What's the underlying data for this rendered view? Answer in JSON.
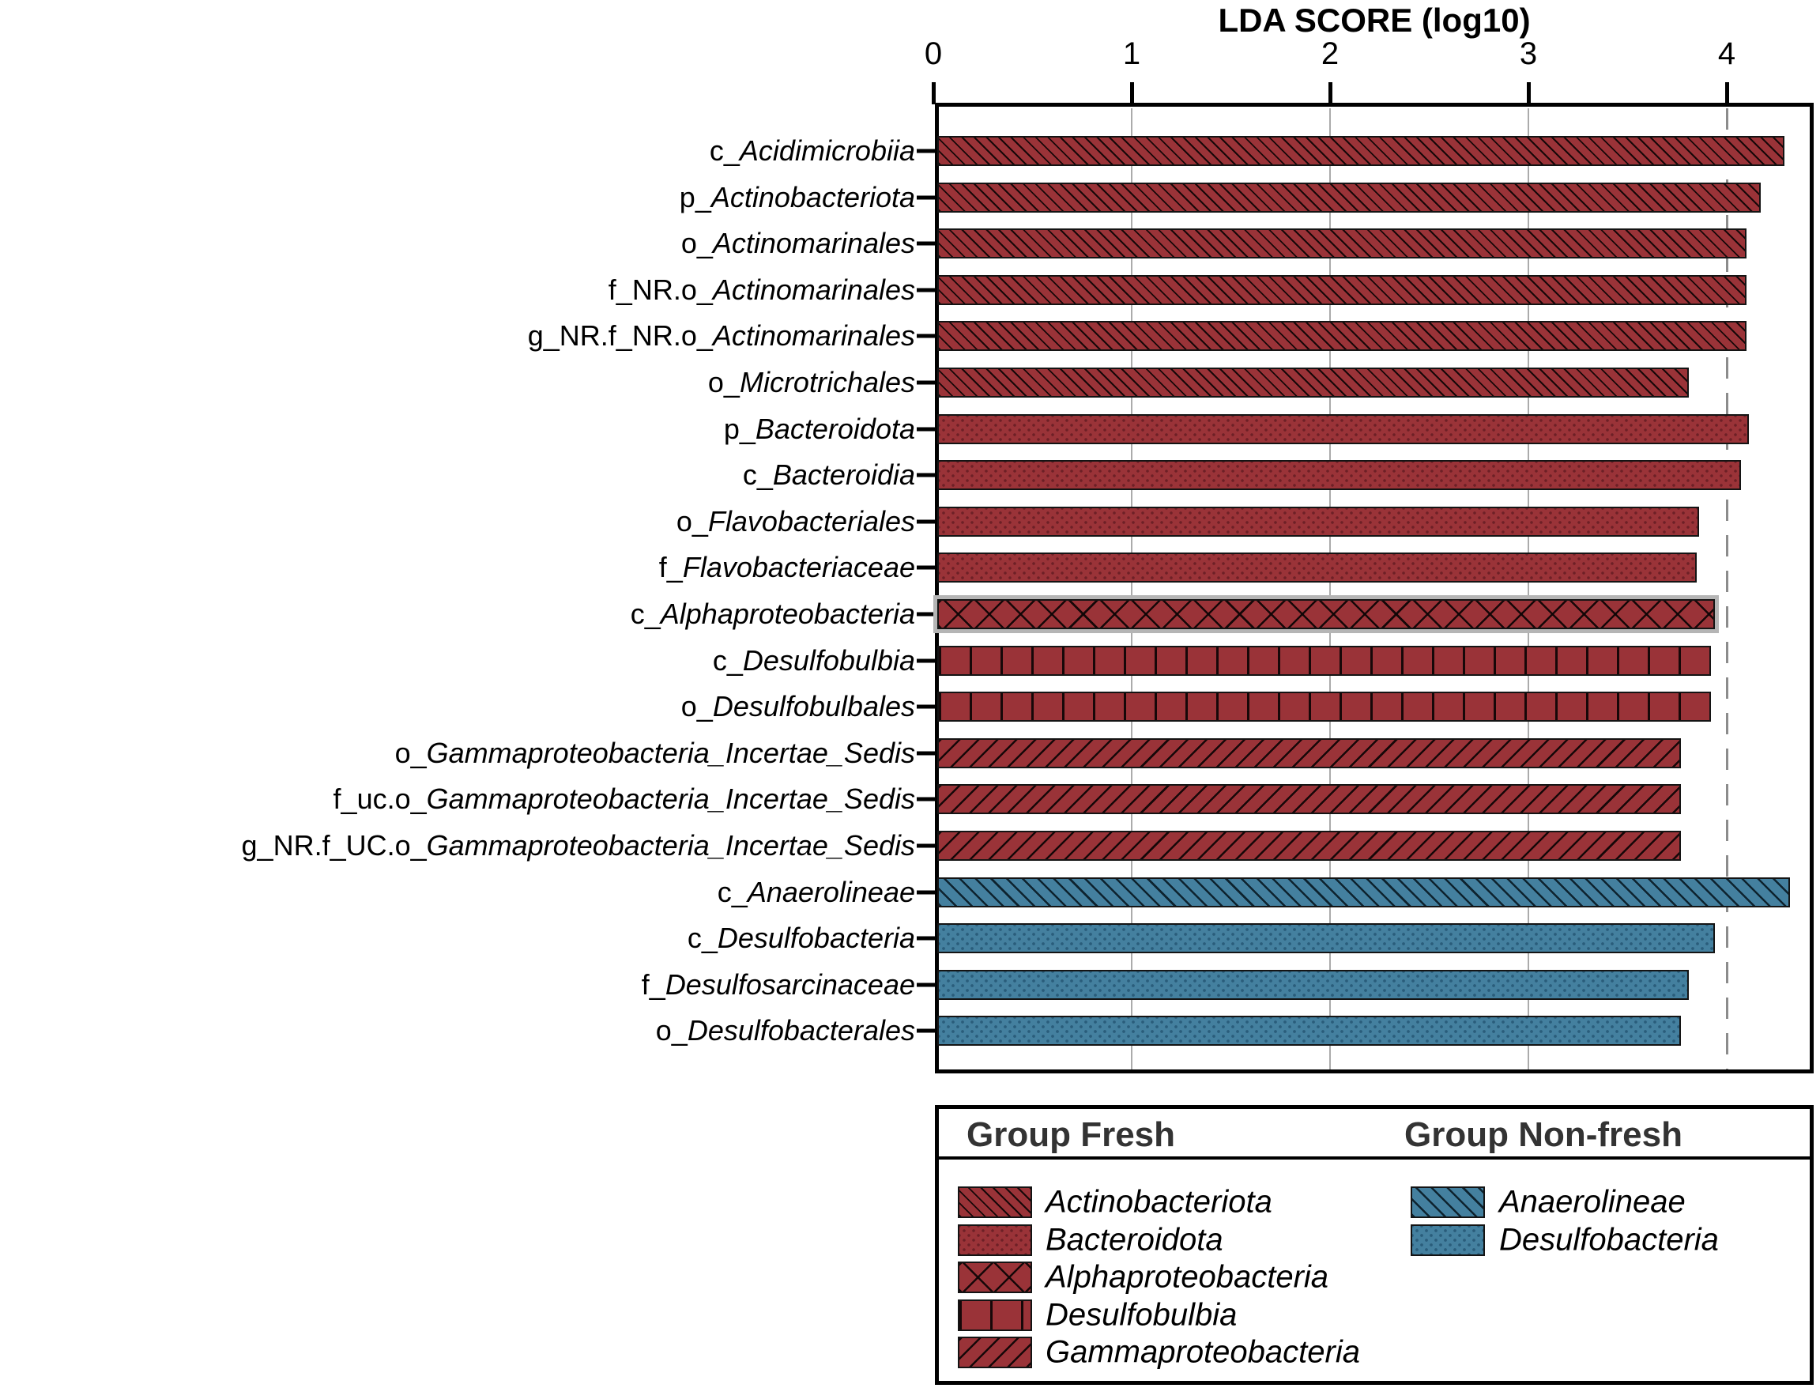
{
  "title": "LDA SCORE (log10)",
  "x_axis": {
    "tick_labels": [
      "0",
      "1",
      "2",
      "3",
      "4"
    ],
    "tick_values": [
      0,
      1,
      2,
      3,
      4
    ],
    "max": 4.44,
    "solid_gridlines_at": [
      1,
      2,
      3
    ],
    "dashed_reference_line_at": 4
  },
  "chart_data": {
    "type": "bar",
    "orientation": "horizontal",
    "title": "LDA SCORE (log10)",
    "xlabel": "LDA SCORE (log10)",
    "ylabel": "",
    "xlim": [
      0,
      4.44
    ],
    "grid": "vertical-gridlines-at-1-2-3-plus-dashed-at-4",
    "legend_position": "bottom-box",
    "bars": [
      {
        "label_prefix": "c_",
        "label_taxon": "Acidimicrobiia",
        "value": 4.29,
        "group": "Fresh",
        "legend_taxon": "Actinobacteriota",
        "pattern": "diagonal-forward",
        "color": "#9a3338"
      },
      {
        "label_prefix": "p_",
        "label_taxon": "Actinobacteriota",
        "value": 4.17,
        "group": "Fresh",
        "legend_taxon": "Actinobacteriota",
        "pattern": "diagonal-forward",
        "color": "#9a3338"
      },
      {
        "label_prefix": "o_",
        "label_taxon": "Actinomarinales",
        "value": 4.1,
        "group": "Fresh",
        "legend_taxon": "Actinobacteriota",
        "pattern": "diagonal-forward",
        "color": "#9a3338"
      },
      {
        "label_prefix": "f_NR.o_",
        "label_taxon": "Actinomarinales",
        "value": 4.1,
        "group": "Fresh",
        "legend_taxon": "Actinobacteriota",
        "pattern": "diagonal-forward",
        "color": "#9a3338"
      },
      {
        "label_prefix": "g_NR.f_NR.o_",
        "label_taxon": "Actinomarinales",
        "value": 4.1,
        "group": "Fresh",
        "legend_taxon": "Actinobacteriota",
        "pattern": "diagonal-forward",
        "color": "#9a3338"
      },
      {
        "label_prefix": "o_",
        "label_taxon": "Microtrichales",
        "value": 3.81,
        "group": "Fresh",
        "legend_taxon": "Actinobacteriota",
        "pattern": "diagonal-forward",
        "color": "#9a3338"
      },
      {
        "label_prefix": "p_",
        "label_taxon": "Bacteroidota",
        "value": 4.11,
        "group": "Fresh",
        "legend_taxon": "Bacteroidota",
        "pattern": "dots",
        "color": "#9a3338"
      },
      {
        "label_prefix": "c_",
        "label_taxon": "Bacteroidia",
        "value": 4.07,
        "group": "Fresh",
        "legend_taxon": "Bacteroidota",
        "pattern": "dots",
        "color": "#9a3338"
      },
      {
        "label_prefix": "o_",
        "label_taxon": "Flavobacteriales",
        "value": 3.86,
        "group": "Fresh",
        "legend_taxon": "Bacteroidota",
        "pattern": "dots",
        "color": "#9a3338"
      },
      {
        "label_prefix": "f_",
        "label_taxon": "Flavobacteriaceae",
        "value": 3.85,
        "group": "Fresh",
        "legend_taxon": "Bacteroidota",
        "pattern": "dots",
        "color": "#9a3338"
      },
      {
        "label_prefix": "c_",
        "label_taxon": "Alphaproteobacteria",
        "value": 3.94,
        "group": "Fresh",
        "legend_taxon": "Alphaproteobacteria",
        "pattern": "crosshatch",
        "color": "#9a3338",
        "highlight_outline": true
      },
      {
        "label_prefix": "c_",
        "label_taxon": "Desulfobulbia",
        "value": 3.92,
        "group": "Fresh",
        "legend_taxon": "Desulfobulbia",
        "pattern": "vertical",
        "color": "#9a3338"
      },
      {
        "label_prefix": "o_",
        "label_taxon": "Desulfobulbales",
        "value": 3.92,
        "group": "Fresh",
        "legend_taxon": "Desulfobulbia",
        "pattern": "vertical",
        "color": "#9a3338"
      },
      {
        "label_prefix": "o_",
        "label_taxon": "Gammaproteobacteria_Incertae_Sedis",
        "value": 3.77,
        "group": "Fresh",
        "legend_taxon": "Gammaproteobacteria",
        "pattern": "diagonal-back",
        "color": "#9a3338"
      },
      {
        "label_prefix": "f_uc.o_",
        "label_taxon": "Gammaproteobacteria_Incertae_Sedis",
        "value": 3.77,
        "group": "Fresh",
        "legend_taxon": "Gammaproteobacteria",
        "pattern": "diagonal-back",
        "color": "#9a3338"
      },
      {
        "label_prefix": "g_NR.f_UC.o_",
        "label_taxon": "Gammaproteobacteria_Incertae_Sedis",
        "value": 3.77,
        "group": "Fresh",
        "legend_taxon": "Gammaproteobacteria",
        "pattern": "diagonal-back",
        "color": "#9a3338"
      },
      {
        "label_prefix": "c_",
        "label_taxon": "Anaerolineae",
        "value": 4.32,
        "group": "Non-fresh",
        "legend_taxon": "Anaerolineae",
        "pattern": "diagonal-forward",
        "color": "#44809f"
      },
      {
        "label_prefix": "c_",
        "label_taxon": "Desulfobacteria",
        "value": 3.94,
        "group": "Non-fresh",
        "legend_taxon": "Desulfobacteria",
        "pattern": "dots",
        "color": "#44809f"
      },
      {
        "label_prefix": "f_",
        "label_taxon": "Desulfosarcinaceae",
        "value": 3.81,
        "group": "Non-fresh",
        "legend_taxon": "Desulfobacteria",
        "pattern": "dots",
        "color": "#44809f"
      },
      {
        "label_prefix": "o_",
        "label_taxon": "Desulfobacterales",
        "value": 3.77,
        "group": "Non-fresh",
        "legend_taxon": "Desulfobacteria",
        "pattern": "dots",
        "color": "#44809f"
      }
    ]
  },
  "legend": {
    "columns": [
      {
        "header": "Group Fresh",
        "items": [
          {
            "label": "Actinobacteriota",
            "pattern": "diagonal-forward",
            "color": "#9a3338"
          },
          {
            "label": "Bacteroidota",
            "pattern": "dots",
            "color": "#9a3338"
          },
          {
            "label": "Alphaproteobacteria",
            "pattern": "crosshatch",
            "color": "#9a3338"
          },
          {
            "label": "Desulfobulbia",
            "pattern": "vertical",
            "color": "#9a3338"
          },
          {
            "label": "Gammaproteobacteria",
            "pattern": "diagonal-back",
            "color": "#9a3338"
          }
        ]
      },
      {
        "header": "Group Non-fresh",
        "items": [
          {
            "label": "Anaerolineae",
            "pattern": "diagonal-forward",
            "color": "#44809f"
          },
          {
            "label": "Desulfobacteria",
            "pattern": "dots",
            "color": "#44809f"
          }
        ]
      }
    ]
  },
  "colors": {
    "fresh": "#9a3338",
    "non_fresh": "#44809f",
    "gridline": "#ababab",
    "dashed_line": "#8c8c8c",
    "border": "#000000",
    "legend_header_text": "#333333"
  }
}
